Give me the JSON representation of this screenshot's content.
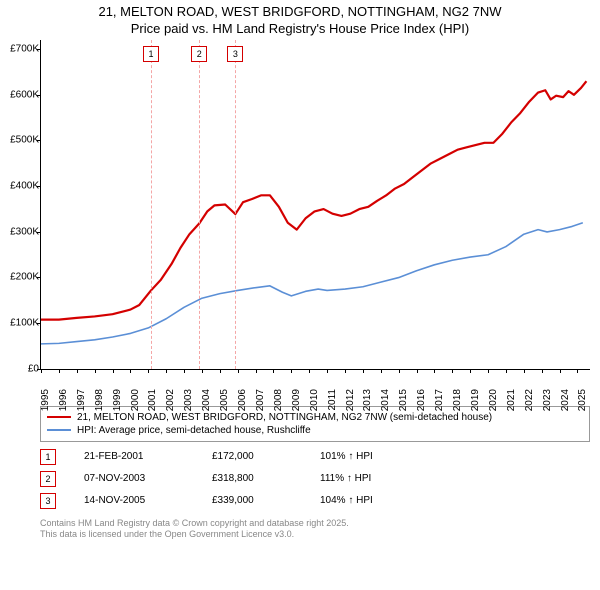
{
  "title_line1": "21, MELTON ROAD, WEST BRIDGFORD, NOTTINGHAM, NG2 7NW",
  "title_line2": "Price paid vs. HM Land Registry's House Price Index (HPI)",
  "chart": {
    "type": "line",
    "background_color": "#ffffff",
    "x": {
      "min": 1995,
      "max": 2025.7,
      "ticks": [
        1995,
        1996,
        1997,
        1998,
        1999,
        2000,
        2001,
        2002,
        2003,
        2004,
        2005,
        2006,
        2007,
        2008,
        2009,
        2010,
        2011,
        2012,
        2013,
        2014,
        2015,
        2016,
        2017,
        2018,
        2019,
        2020,
        2021,
        2022,
        2023,
        2024,
        2025
      ]
    },
    "y": {
      "min": 0,
      "max": 720000,
      "ticks": [
        0,
        100000,
        200000,
        300000,
        400000,
        500000,
        600000,
        700000
      ],
      "tick_labels": [
        "£0",
        "£100K",
        "£200K",
        "£300K",
        "£400K",
        "£500K",
        "£600K",
        "£700K"
      ]
    },
    "series": [
      {
        "name": "21, MELTON ROAD, WEST BRIDGFORD, NOTTINGHAM, NG2 7NW (semi-detached house)",
        "color": "#d40000",
        "width": 2.2,
        "points": [
          [
            1995,
            108000
          ],
          [
            1996,
            108000
          ],
          [
            1997,
            112000
          ],
          [
            1998,
            115000
          ],
          [
            1999,
            120000
          ],
          [
            2000,
            130000
          ],
          [
            2000.5,
            140000
          ],
          [
            2001.15,
            172000
          ],
          [
            2001.7,
            195000
          ],
          [
            2002.3,
            230000
          ],
          [
            2002.8,
            265000
          ],
          [
            2003.3,
            295000
          ],
          [
            2003.85,
            318800
          ],
          [
            2004.3,
            345000
          ],
          [
            2004.7,
            358000
          ],
          [
            2005.3,
            360000
          ],
          [
            2005.87,
            339000
          ],
          [
            2006.3,
            365000
          ],
          [
            2006.8,
            372000
          ],
          [
            2007.3,
            380000
          ],
          [
            2007.8,
            380000
          ],
          [
            2008.3,
            355000
          ],
          [
            2008.8,
            320000
          ],
          [
            2009.3,
            305000
          ],
          [
            2009.8,
            330000
          ],
          [
            2010.3,
            345000
          ],
          [
            2010.8,
            350000
          ],
          [
            2011.3,
            340000
          ],
          [
            2011.8,
            335000
          ],
          [
            2012.3,
            340000
          ],
          [
            2012.8,
            350000
          ],
          [
            2013.3,
            355000
          ],
          [
            2013.8,
            368000
          ],
          [
            2014.3,
            380000
          ],
          [
            2014.8,
            395000
          ],
          [
            2015.3,
            405000
          ],
          [
            2015.8,
            420000
          ],
          [
            2016.3,
            435000
          ],
          [
            2016.8,
            450000
          ],
          [
            2017.3,
            460000
          ],
          [
            2017.8,
            470000
          ],
          [
            2018.3,
            480000
          ],
          [
            2018.8,
            485000
          ],
          [
            2019.3,
            490000
          ],
          [
            2019.8,
            495000
          ],
          [
            2020.3,
            495000
          ],
          [
            2020.8,
            515000
          ],
          [
            2021.3,
            540000
          ],
          [
            2021.8,
            560000
          ],
          [
            2022.3,
            585000
          ],
          [
            2022.8,
            605000
          ],
          [
            2023.2,
            610000
          ],
          [
            2023.5,
            590000
          ],
          [
            2023.8,
            598000
          ],
          [
            2024.2,
            595000
          ],
          [
            2024.5,
            608000
          ],
          [
            2024.8,
            600000
          ],
          [
            2025.2,
            615000
          ],
          [
            2025.5,
            630000
          ]
        ]
      },
      {
        "name": "HPI: Average price, semi-detached house, Rushcliffe",
        "color": "#5b8fd6",
        "width": 1.6,
        "points": [
          [
            1995,
            55000
          ],
          [
            1996,
            56000
          ],
          [
            1997,
            60000
          ],
          [
            1998,
            64000
          ],
          [
            1999,
            70000
          ],
          [
            2000,
            78000
          ],
          [
            2001,
            90000
          ],
          [
            2002,
            110000
          ],
          [
            2003,
            135000
          ],
          [
            2004,
            155000
          ],
          [
            2005,
            165000
          ],
          [
            2006,
            172000
          ],
          [
            2007,
            178000
          ],
          [
            2007.8,
            182000
          ],
          [
            2008.5,
            168000
          ],
          [
            2009,
            160000
          ],
          [
            2009.8,
            170000
          ],
          [
            2010.5,
            175000
          ],
          [
            2011,
            172000
          ],
          [
            2012,
            175000
          ],
          [
            2013,
            180000
          ],
          [
            2014,
            190000
          ],
          [
            2015,
            200000
          ],
          [
            2016,
            215000
          ],
          [
            2017,
            228000
          ],
          [
            2018,
            238000
          ],
          [
            2019,
            245000
          ],
          [
            2020,
            250000
          ],
          [
            2021,
            268000
          ],
          [
            2022,
            295000
          ],
          [
            2022.8,
            305000
          ],
          [
            2023.3,
            300000
          ],
          [
            2024,
            305000
          ],
          [
            2024.7,
            312000
          ],
          [
            2025.3,
            320000
          ]
        ]
      }
    ],
    "sales": [
      {
        "n": "1",
        "date": "21-FEB-2001",
        "x": 2001.15,
        "price": "£172,000",
        "rel": "101% ↑ HPI",
        "color": "#d40000"
      },
      {
        "n": "2",
        "date": "07-NOV-2003",
        "x": 2003.85,
        "price": "£318,800",
        "rel": "111% ↑ HPI",
        "color": "#d40000"
      },
      {
        "n": "3",
        "date": "14-NOV-2005",
        "x": 2005.87,
        "price": "£339,000",
        "rel": "104% ↑ HPI",
        "color": "#d40000"
      }
    ],
    "sale_dash_color": "#f4a6a6",
    "axis_label_fontsize": 10,
    "title_fontsize": 13
  },
  "legend": {
    "items": [
      {
        "color": "#d40000",
        "label": "21, MELTON ROAD, WEST BRIDGFORD, NOTTINGHAM, NG2 7NW (semi-detached house)"
      },
      {
        "color": "#5b8fd6",
        "label": "HPI: Average price, semi-detached house, Rushcliffe"
      }
    ]
  },
  "footer_line1": "Contains HM Land Registry data © Crown copyright and database right 2025.",
  "footer_line2": "This data is licensed under the Open Government Licence v3.0."
}
